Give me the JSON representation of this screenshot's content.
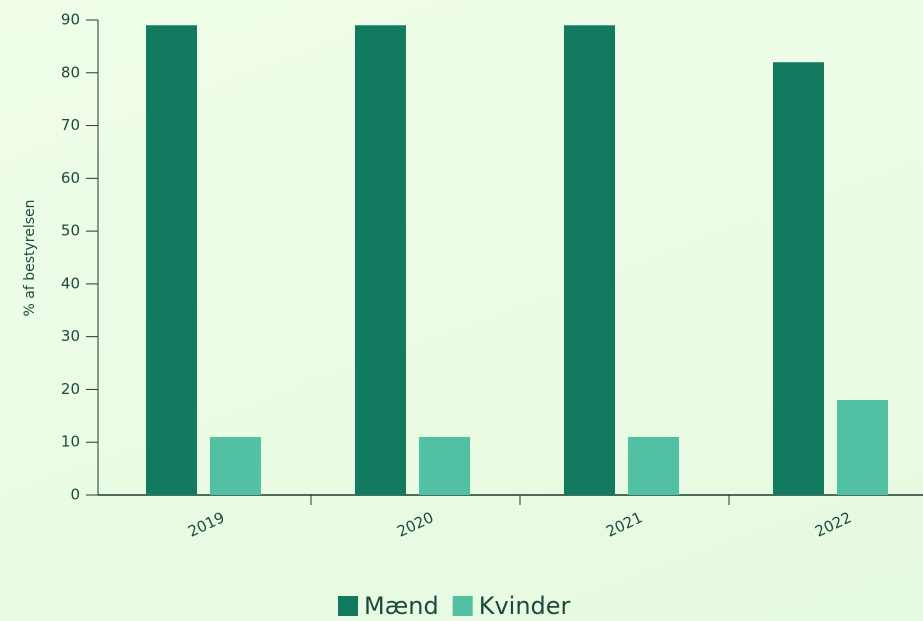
{
  "chart_data": {
    "type": "bar",
    "ylabel": "% af bestyrelsen",
    "categories": [
      "2019",
      "2020",
      "2021",
      "2022"
    ],
    "series": [
      {
        "name": "Mænd",
        "color": "#127a5e",
        "values": [
          89,
          89,
          89,
          82
        ]
      },
      {
        "name": "Kvinder",
        "color": "#52c0a3",
        "values": [
          11,
          11,
          11,
          18
        ]
      }
    ],
    "ylim": [
      0,
      90
    ],
    "yticks": [
      0,
      10,
      20,
      30,
      40,
      50,
      60,
      70,
      80,
      90
    ],
    "legend": "bottom"
  }
}
